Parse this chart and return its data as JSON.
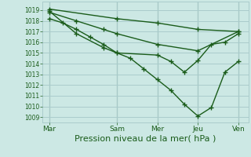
{
  "background_color": "#cce8e4",
  "grid_color": "#aacccc",
  "line_color": "#1a5c1a",
  "xlabel": "Pression niveau de la mer( hPa )",
  "xlabel_fontsize": 8,
  "yticks": [
    1009,
    1010,
    1011,
    1012,
    1013,
    1014,
    1015,
    1016,
    1017,
    1018,
    1019
  ],
  "ylim": [
    1008.5,
    1019.8
  ],
  "xtick_labels": [
    "Mar",
    "Sam",
    "Mer",
    "Jeu",
    "Ven"
  ],
  "xtick_positions": [
    0,
    40,
    64,
    88,
    112
  ],
  "xlim": [
    -4,
    118
  ],
  "line1_x": [
    0,
    40,
    64,
    88,
    112
  ],
  "line1_y": [
    1019.1,
    1018.2,
    1017.8,
    1017.2,
    1017.0
  ],
  "line2_x": [
    0,
    8,
    16,
    24,
    32,
    40,
    48,
    56,
    64,
    72,
    80,
    88,
    96,
    104,
    112
  ],
  "line2_y": [
    1018.2,
    1017.8,
    1017.2,
    1016.5,
    1015.8,
    1015.0,
    1014.5,
    1013.5,
    1012.5,
    1011.5,
    1010.2,
    1009.1,
    1009.9,
    1013.2,
    1014.2
  ],
  "line3_x": [
    0,
    16,
    32,
    40,
    64,
    88,
    112
  ],
  "line3_y": [
    1018.8,
    1018.0,
    1017.2,
    1016.8,
    1015.8,
    1015.2,
    1017.0
  ],
  "line4_x": [
    0,
    16,
    32,
    40,
    64,
    72,
    80,
    88,
    96,
    104,
    112
  ],
  "line4_y": [
    1018.9,
    1016.8,
    1015.5,
    1015.0,
    1014.8,
    1014.2,
    1013.2,
    1014.3,
    1015.8,
    1016.0,
    1016.8
  ],
  "marker": "+",
  "markersize": 4,
  "linewidth": 1.0
}
